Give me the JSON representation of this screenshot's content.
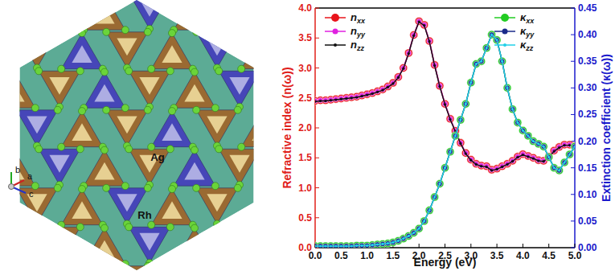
{
  "chart_data": {
    "type": "line",
    "x_label": "Energy (eV)",
    "y_label": "Refractive index (n(ω))",
    "y2_label": "Extinction coefficient (κ(ω))",
    "x": [
      0.0,
      0.1,
      0.2,
      0.3,
      0.4,
      0.5,
      0.6,
      0.7,
      0.8,
      0.9,
      1.0,
      1.1,
      1.2,
      1.3,
      1.4,
      1.5,
      1.6,
      1.7,
      1.8,
      1.9,
      2.0,
      2.1,
      2.2,
      2.3,
      2.4,
      2.5,
      2.6,
      2.7,
      2.8,
      2.9,
      3.0,
      3.1,
      3.2,
      3.3,
      3.4,
      3.5,
      3.6,
      3.7,
      3.8,
      3.9,
      4.0,
      4.1,
      4.2,
      4.3,
      4.4,
      4.5,
      4.6,
      4.7,
      4.8,
      4.9,
      5.0
    ],
    "series": [
      {
        "name": "nxx",
        "color": "#e8141b",
        "marker": "circle",
        "values": [
          2.45,
          2.46,
          2.46,
          2.47,
          2.48,
          2.49,
          2.5,
          2.51,
          2.52,
          2.54,
          2.56,
          2.58,
          2.61,
          2.64,
          2.69,
          2.75,
          2.85,
          3.0,
          3.25,
          3.55,
          3.78,
          3.72,
          3.45,
          3.05,
          2.7,
          2.4,
          2.15,
          1.95,
          1.75,
          1.58,
          1.47,
          1.4,
          1.37,
          1.36,
          1.3,
          1.32,
          1.36,
          1.4,
          1.45,
          1.52,
          1.56,
          1.53,
          1.5,
          1.46,
          1.45,
          1.52,
          1.62,
          1.68,
          1.72,
          1.72,
          1.7
        ]
      },
      {
        "name": "nyy",
        "color": "#e020e0",
        "marker": "circle",
        "values": [
          2.45,
          2.46,
          2.46,
          2.47,
          2.48,
          2.49,
          2.5,
          2.51,
          2.52,
          2.54,
          2.56,
          2.58,
          2.61,
          2.64,
          2.69,
          2.75,
          2.85,
          3.0,
          3.25,
          3.55,
          3.78,
          3.72,
          3.45,
          3.05,
          2.7,
          2.4,
          2.15,
          1.95,
          1.75,
          1.58,
          1.47,
          1.4,
          1.37,
          1.36,
          1.3,
          1.32,
          1.36,
          1.4,
          1.45,
          1.52,
          1.56,
          1.53,
          1.5,
          1.46,
          1.45,
          1.52,
          1.62,
          1.68,
          1.72,
          1.72,
          1.7
        ]
      },
      {
        "name": "nzz",
        "color": "#111111",
        "marker": "dot",
        "values": [
          2.44,
          2.45,
          2.45,
          2.46,
          2.47,
          2.48,
          2.49,
          2.5,
          2.51,
          2.53,
          2.55,
          2.57,
          2.6,
          2.63,
          2.68,
          2.74,
          2.84,
          2.99,
          3.24,
          3.54,
          3.77,
          3.71,
          3.44,
          3.04,
          2.69,
          2.39,
          2.14,
          1.94,
          1.74,
          1.57,
          1.46,
          1.39,
          1.36,
          1.35,
          1.29,
          1.31,
          1.35,
          1.39,
          1.44,
          1.51,
          1.55,
          1.52,
          1.49,
          1.45,
          1.44,
          1.51,
          1.61,
          1.67,
          1.71,
          1.71,
          1.69
        ]
      },
      {
        "name": "κxx",
        "color": "#22cc22",
        "marker": "circle",
        "axis": "y2",
        "values": [
          0.003,
          0.003,
          0.003,
          0.003,
          0.003,
          0.003,
          0.003,
          0.003,
          0.004,
          0.004,
          0.004,
          0.005,
          0.006,
          0.007,
          0.008,
          0.01,
          0.013,
          0.017,
          0.022,
          0.028,
          0.036,
          0.05,
          0.07,
          0.095,
          0.12,
          0.15,
          0.18,
          0.21,
          0.24,
          0.27,
          0.31,
          0.345,
          0.35,
          0.375,
          0.4,
          0.39,
          0.35,
          0.3,
          0.26,
          0.235,
          0.22,
          0.21,
          0.2,
          0.195,
          0.19,
          0.17,
          0.15,
          0.145,
          0.16,
          0.175,
          0.19
        ]
      },
      {
        "name": "κyy",
        "color": "#1a2a8a",
        "marker": "circle",
        "axis": "y2",
        "values": [
          0.003,
          0.003,
          0.003,
          0.003,
          0.003,
          0.003,
          0.003,
          0.003,
          0.004,
          0.004,
          0.004,
          0.005,
          0.006,
          0.007,
          0.008,
          0.01,
          0.013,
          0.017,
          0.022,
          0.028,
          0.036,
          0.05,
          0.07,
          0.095,
          0.12,
          0.15,
          0.18,
          0.21,
          0.24,
          0.27,
          0.31,
          0.345,
          0.35,
          0.375,
          0.4,
          0.39,
          0.35,
          0.3,
          0.26,
          0.235,
          0.22,
          0.21,
          0.2,
          0.195,
          0.19,
          0.17,
          0.15,
          0.145,
          0.16,
          0.175,
          0.19
        ]
      },
      {
        "name": "κzz",
        "color": "#22d0e8",
        "marker": "dot",
        "axis": "y2",
        "values": [
          0.003,
          0.003,
          0.003,
          0.003,
          0.003,
          0.003,
          0.003,
          0.003,
          0.004,
          0.004,
          0.004,
          0.005,
          0.006,
          0.007,
          0.008,
          0.01,
          0.013,
          0.017,
          0.022,
          0.028,
          0.036,
          0.05,
          0.07,
          0.095,
          0.12,
          0.15,
          0.18,
          0.21,
          0.24,
          0.27,
          0.31,
          0.345,
          0.35,
          0.375,
          0.4,
          0.39,
          0.35,
          0.3,
          0.26,
          0.235,
          0.22,
          0.21,
          0.2,
          0.195,
          0.19,
          0.17,
          0.15,
          0.145,
          0.16,
          0.175,
          0.19
        ]
      }
    ],
    "xlim": [
      0,
      5
    ],
    "xticks": [
      {
        "value": 0,
        "label": "0.0"
      },
      {
        "value": 0.5,
        "label": "0.5"
      },
      {
        "value": 1,
        "label": "1.0"
      },
      {
        "value": 1.5,
        "label": "1.5"
      },
      {
        "value": 2,
        "label": "2.0"
      },
      {
        "value": 2.5,
        "label": "2.5"
      },
      {
        "value": 3,
        "label": "3.0"
      },
      {
        "value": 3.5,
        "label": "3.5"
      },
      {
        "value": 4,
        "label": "4.0"
      },
      {
        "value": 4.5,
        "label": "4.5"
      },
      {
        "value": 5,
        "label": "5.0"
      }
    ],
    "ylim": [
      0,
      4
    ],
    "yticks": [
      {
        "value": 0,
        "label": "0.0"
      },
      {
        "value": 0.5,
        "label": "0.5"
      },
      {
        "value": 1,
        "label": "1.0"
      },
      {
        "value": 1.5,
        "label": "1.5"
      },
      {
        "value": 2,
        "label": "2.0"
      },
      {
        "value": 2.5,
        "label": "2.5"
      },
      {
        "value": 3,
        "label": "3.0"
      },
      {
        "value": 3.5,
        "label": "3.5"
      },
      {
        "value": 4,
        "label": "4.0"
      }
    ],
    "y2lim": [
      0,
      0.45
    ],
    "y2ticks": [
      {
        "value": 0,
        "label": "0.00"
      },
      {
        "value": 0.05,
        "label": "0.05"
      },
      {
        "value": 0.1,
        "label": "0.10"
      },
      {
        "value": 0.15,
        "label": "0.15"
      },
      {
        "value": 0.2,
        "label": "0.20"
      },
      {
        "value": 0.25,
        "label": "0.25"
      },
      {
        "value": 0.3,
        "label": "0.30"
      },
      {
        "value": 0.35,
        "label": "0.35"
      },
      {
        "value": 0.4,
        "label": "0.40"
      },
      {
        "value": 0.45,
        "label": "0.45"
      }
    ],
    "grid": false
  },
  "structure": {
    "atom_labels": [
      "Ag",
      "Rh"
    ],
    "axis_labels": [
      "b",
      "a",
      "c"
    ]
  }
}
